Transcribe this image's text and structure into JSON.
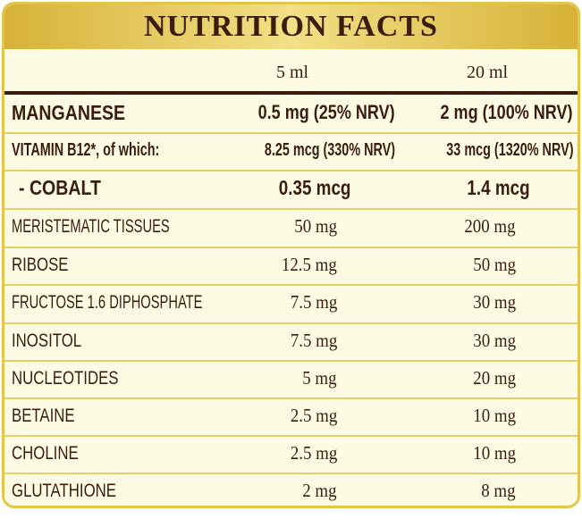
{
  "header": {
    "title": "NUTRITION FACTS"
  },
  "table": {
    "columns": [
      "5 ml",
      "20 ml"
    ],
    "rows": [
      [
        "MANGANESE",
        "0.5 mg (25% NRV)",
        "2 mg (100% NRV)"
      ],
      [
        "VITAMIN B12*, of which:",
        "8.25 mcg (330% NRV)",
        "33 mcg (1320% NRV)"
      ],
      [
        "- COBALT",
        "0.35 mcg",
        "1.4 mcg"
      ],
      [
        "MERISTEMATIC TISSUES",
        "50 mg",
        "200 mg"
      ],
      [
        "RIBOSE",
        "12.5 mg",
        "50 mg"
      ],
      [
        "FRUCTOSE 1.6 DIPHOSPHATE",
        "7.5 mg",
        "30 mg"
      ],
      [
        "INOSITOL",
        "7.5 mg",
        "30 mg"
      ],
      [
        "NUCLEOTIDES",
        "5 mg",
        "20 mg"
      ],
      [
        "BETAINE",
        "2.5 mg",
        "10 mg"
      ],
      [
        "CHOLINE",
        "2.5 mg",
        "10 mg"
      ],
      [
        "GLUTATHIONE",
        "2 mg",
        "8 mg"
      ]
    ]
  }
}
